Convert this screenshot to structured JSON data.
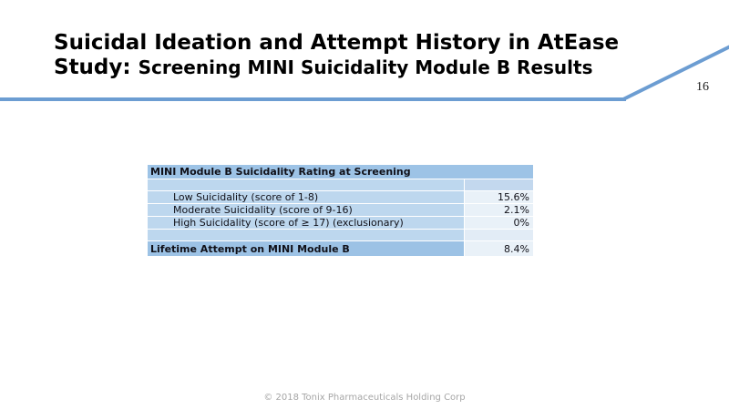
{
  "slide": {
    "title_line1": "Suicidal Ideation and Attempt History in AtEase",
    "title_line2_prefix": "Study: ",
    "title_line2_rest": "Screening MINI Suicidality Module B Results",
    "page_number": "16",
    "footer": "© 2018 Tonix Pharmaceuticals Holding Corp"
  },
  "table": {
    "header": "MINI Module B Suicidality Rating at Screening",
    "rows": [
      {
        "label": "Low Suicidality (score of 1-8)",
        "value": "15.6%"
      },
      {
        "label": "Moderate Suicidality (score of 9-16)",
        "value": "2.1%"
      },
      {
        "label": "High Suicidality (score of ≥ 17) (exclusionary)",
        "value": "0%"
      }
    ],
    "summary": {
      "label": "Lifetime Attempt on MINI Module B",
      "value": "8.4%"
    }
  },
  "colors": {
    "accent_line": "#6C9DD2",
    "table_header_bg": "#9DC3E6",
    "table_label_bg": "#BDD7EE",
    "table_value_bg": "#E9F1F8",
    "table_spacer_value_bg": "#C3D8EE",
    "summary_label_bg": "#9CC2E5",
    "footer_text": "#A6A6A6",
    "title_text": "#000000"
  }
}
